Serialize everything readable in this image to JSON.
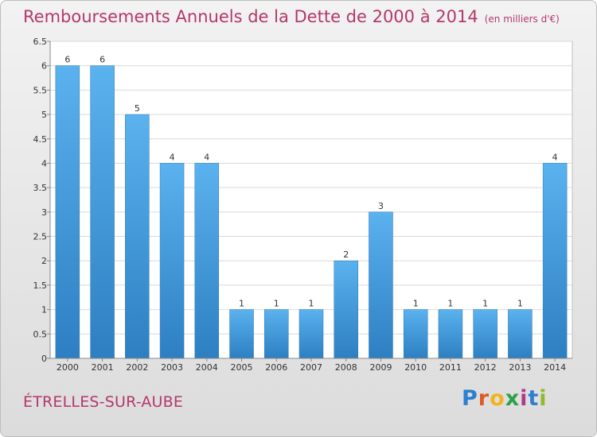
{
  "chart_data": {
    "type": "bar",
    "title": "Remboursements Annuels de la Dette de 2000 à 2014",
    "subtitle": "(en milliers d'€)",
    "categories": [
      "2000",
      "2001",
      "2002",
      "2003",
      "2004",
      "2005",
      "2006",
      "2007",
      "2008",
      "2009",
      "2010",
      "2011",
      "2012",
      "2013",
      "2014"
    ],
    "values": [
      6,
      6,
      5,
      4,
      4,
      1,
      1,
      1,
      2,
      3,
      1,
      1,
      1,
      1,
      4
    ],
    "data_labels": [
      "6",
      "6",
      "5",
      "4",
      "4",
      "1",
      "1",
      "1",
      "2",
      "3",
      "1",
      "1",
      "1",
      "1",
      "4"
    ],
    "ylim": [
      0,
      6.5
    ],
    "yticks": [
      "0",
      "0.5",
      "1",
      "1.5",
      "2",
      "2.5",
      "3",
      "3.5",
      "4",
      "4.5",
      "5",
      "5.5",
      "6",
      "6.5"
    ],
    "xlabel": "",
    "ylabel": "",
    "grid": true,
    "bar_color": "#4a9fdd"
  },
  "footer": {
    "location": "ÉTRELLES-SUR-AUBE",
    "brand_letters": [
      "P",
      "r",
      "o",
      "x",
      "i",
      "t",
      "i"
    ],
    "brand_colors": [
      "#2e7fcf",
      "#e0582a",
      "#f0b41e",
      "#2ca04a",
      "#b03a8a",
      "#2e7fcf",
      "#8dbb2c"
    ]
  }
}
